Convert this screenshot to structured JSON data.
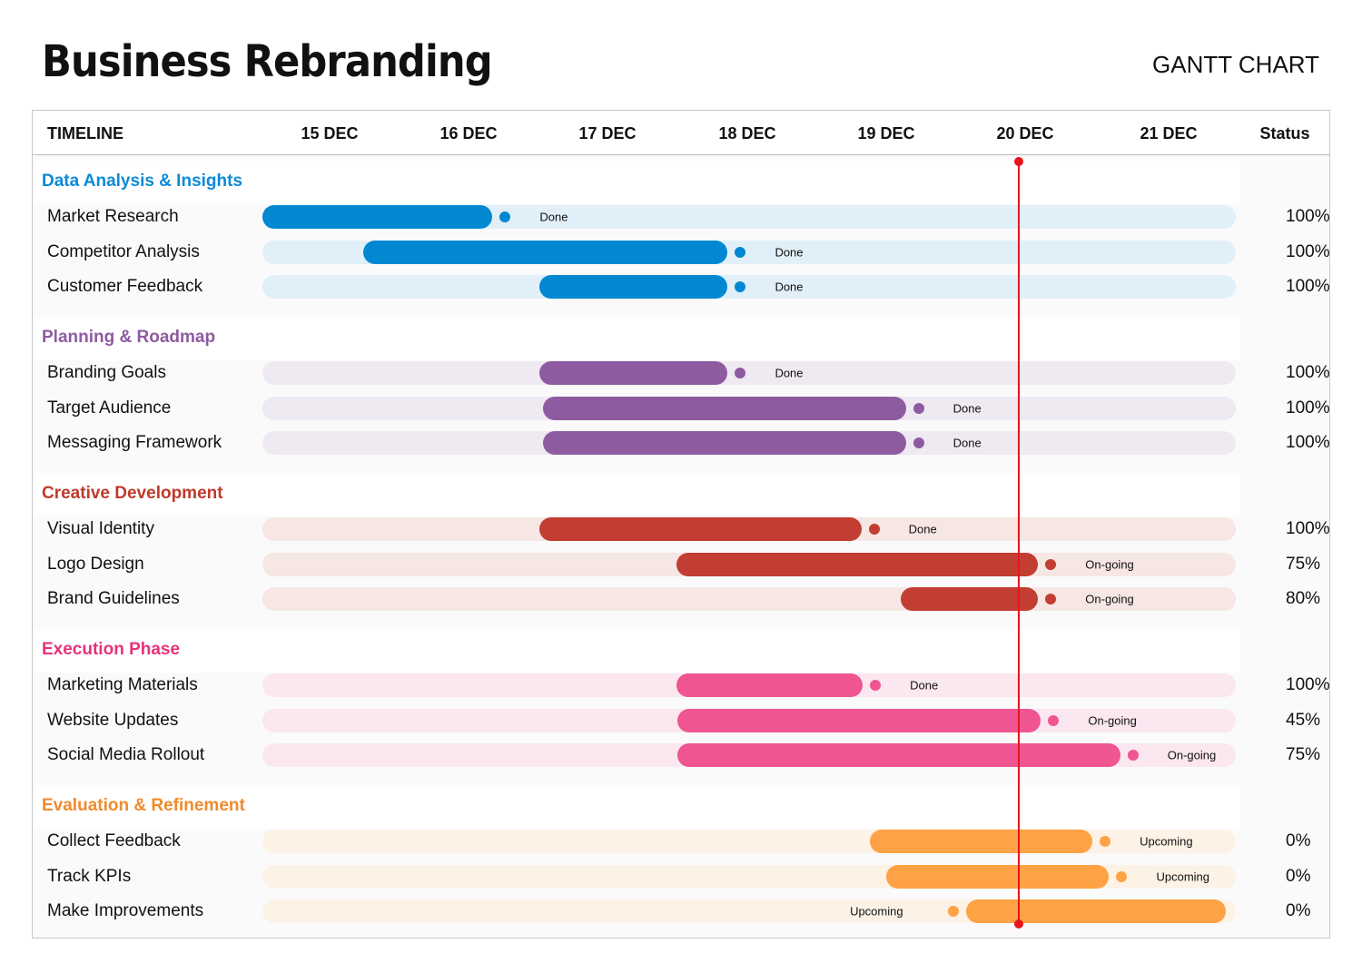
{
  "title": "Business Rebranding",
  "subtitle": "GANTT CHART",
  "chart_data": {
    "type": "gantt",
    "header": {
      "timeline": "TIMELINE",
      "status": "Status"
    },
    "dates": [
      "15 DEC",
      "16 DEC",
      "17 DEC",
      "18 DEC",
      "19 DEC",
      "20 DEC",
      "21 DEC"
    ],
    "date_axis_units": "December day",
    "date_range": [
      14.52,
      21.51
    ],
    "today": 19.95,
    "today_color": "#e8141b",
    "groups": [
      {
        "name": "Data Analysis & Insights",
        "color": "#0b8ad6",
        "bar_color": "#0288d1",
        "track_color": "#e1f0f8",
        "tasks": [
          {
            "name": "Market Research",
            "start": 14.52,
            "end": 16.17,
            "label": "Done",
            "status": "100%"
          },
          {
            "name": "Competitor Analysis",
            "start": 15.24,
            "end": 17.86,
            "label": "Done",
            "status": "100%"
          },
          {
            "name": "Customer Feedback",
            "start": 16.51,
            "end": 17.86,
            "label": "Done",
            "status": "100%"
          }
        ]
      },
      {
        "name": "Planning & Roadmap",
        "color": "#8e5ba1",
        "bar_color": "#8e5ba1",
        "track_color": "#efe9f1",
        "tasks": [
          {
            "name": "Branding Goals",
            "start": 16.51,
            "end": 17.86,
            "label": "Done",
            "status": "100%"
          },
          {
            "name": "Target Audience",
            "start": 16.53,
            "end": 19.14,
            "label": "Done",
            "status": "100%"
          },
          {
            "name": "Messaging Framework",
            "start": 16.53,
            "end": 19.14,
            "label": "Done",
            "status": "100%"
          }
        ]
      },
      {
        "name": "Creative Development",
        "color": "#c0392b",
        "bar_color": "#c23d32",
        "track_color": "#f6e6e4",
        "tasks": [
          {
            "name": "Visual Identity",
            "start": 16.51,
            "end": 18.82,
            "label": "Done",
            "status": "100%"
          },
          {
            "name": "Logo Design",
            "start": 17.49,
            "end": 20.09,
            "label": "On-going",
            "status": "75%"
          },
          {
            "name": "Brand Guidelines",
            "start": 19.1,
            "end": 20.09,
            "label": "On-going",
            "status": "80%"
          }
        ]
      },
      {
        "name": "Execution Phase",
        "color": "#e8317a",
        "bar_color": "#ef5591",
        "track_color": "#fbe7ef",
        "tasks": [
          {
            "name": "Marketing Materials",
            "start": 17.49,
            "end": 18.83,
            "label": "Done",
            "status": "100%"
          },
          {
            "name": "Website Updates",
            "start": 17.5,
            "end": 20.11,
            "label": "On-going",
            "status": "45%"
          },
          {
            "name": "Social Media Rollout",
            "start": 17.5,
            "end": 20.68,
            "label": "On-going",
            "status": "75%"
          }
        ]
      },
      {
        "name": "Evaluation & Refinement",
        "color": "#f08a2c",
        "bar_color": "#ffa145",
        "track_color": "#fcf2e6",
        "tasks": [
          {
            "name": "Collect Feedback",
            "start": 18.88,
            "end": 20.48,
            "label": "Upcoming",
            "status": "0%"
          },
          {
            "name": "Track KPIs",
            "start": 19.0,
            "end": 20.6,
            "label": "Upcoming",
            "status": "0%"
          },
          {
            "name": "Make Improvements",
            "start": 19.57,
            "end": 21.44,
            "label": "Upcoming",
            "label_side": "left",
            "status": "0%"
          }
        ]
      }
    ]
  }
}
